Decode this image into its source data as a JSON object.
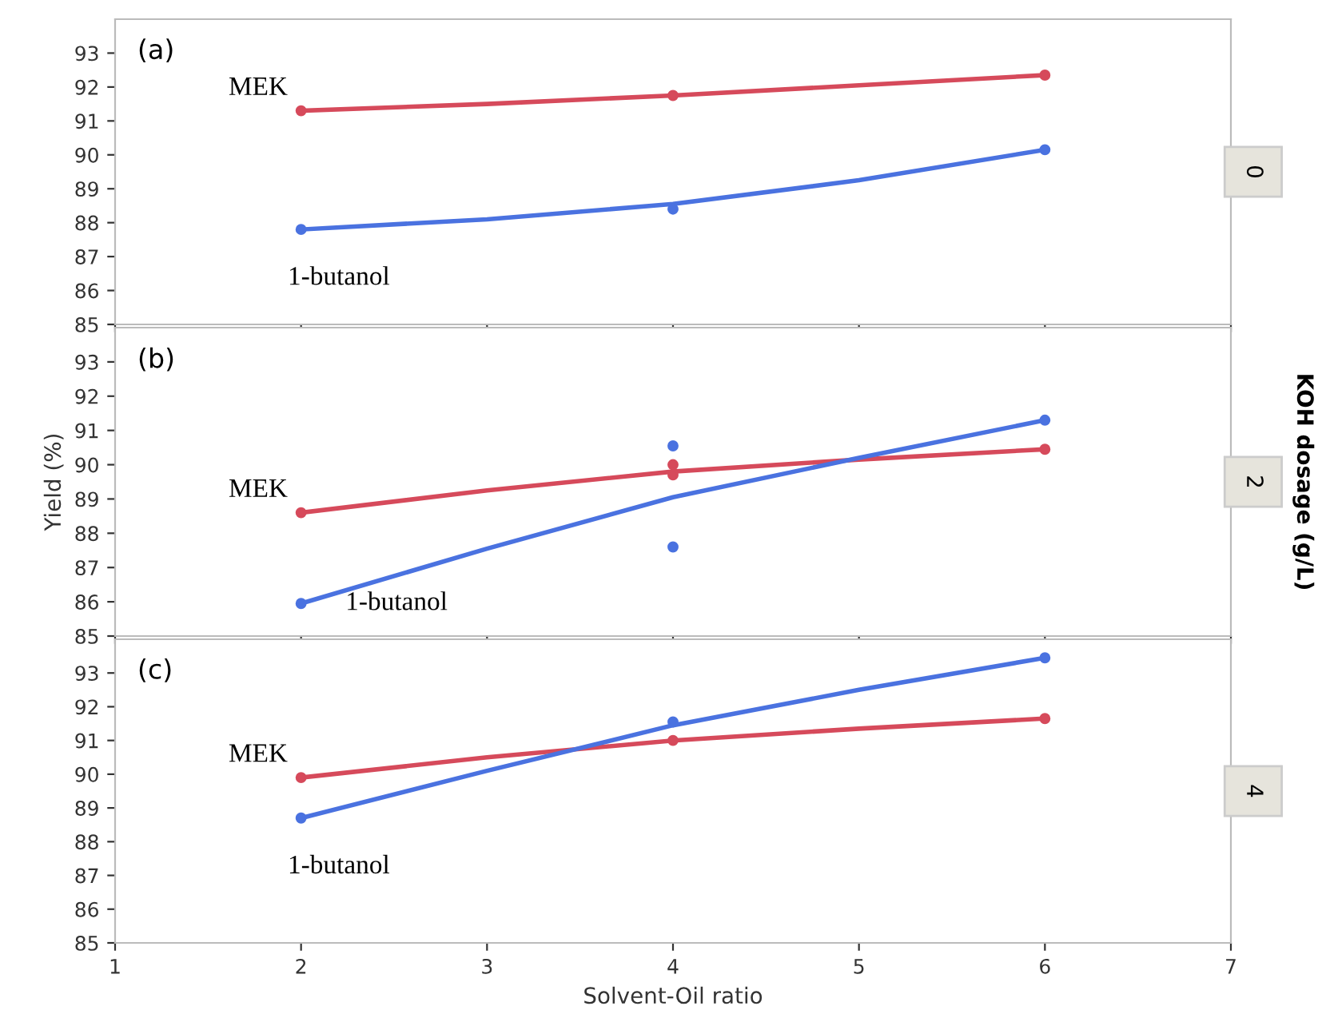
{
  "chart_data": [
    {
      "type": "scatter",
      "xlim": [
        1,
        7
      ],
      "xticks": [
        1,
        2,
        3,
        4,
        5,
        6,
        7
      ],
      "ylim": [
        85,
        94
      ],
      "yticks": [
        85,
        86,
        87,
        88,
        89,
        90,
        91,
        92,
        93
      ],
      "tick_labels": "y",
      "marker": "circle",
      "annotations": [
        "(a)",
        "0"
      ],
      "series": [
        {
          "name": "MEK",
          "color": "#d64a5b",
          "x": [
            2,
            4,
            6
          ],
          "values": [
            91.3,
            91.75,
            92.35
          ]
        },
        {
          "name": "1-butanol",
          "color": "#4a72e0",
          "x": [
            2,
            4,
            6
          ],
          "values": [
            87.8,
            88.4,
            90.15
          ]
        },
        {
          "type": "line",
          "marker": "none",
          "color": "#d64a5b",
          "x": [
            2,
            3,
            4,
            5,
            6
          ],
          "values": [
            91.3,
            91.5,
            91.75,
            92.05,
            92.35
          ]
        },
        {
          "type": "line",
          "marker": "none",
          "color": "#4a72e0",
          "x": [
            2,
            3,
            4,
            5,
            6
          ],
          "values": [
            87.8,
            88.1,
            88.55,
            89.25,
            90.15
          ]
        }
      ]
    },
    {
      "type": "scatter",
      "xlim": [
        1,
        7
      ],
      "xticks": [
        1,
        2,
        3,
        4,
        5,
        6,
        7
      ],
      "ylim": [
        85,
        94
      ],
      "yticks": [
        85,
        86,
        87,
        88,
        89,
        90,
        91,
        92,
        93
      ],
      "tick_labels": "y",
      "marker": "circle",
      "ylabel": "Yield (%)",
      "y2label": "KOH dosage (g/L)",
      "annotations": [
        "(b)",
        "2"
      ],
      "series": [
        {
          "name": "MEK",
          "color": "#d64a5b",
          "x": [
            2,
            4,
            4,
            6
          ],
          "values": [
            88.6,
            90.0,
            89.7,
            90.45
          ]
        },
        {
          "name": "1-butanol",
          "color": "#4a72e0",
          "x": [
            2,
            4,
            4,
            6
          ],
          "values": [
            85.95,
            90.55,
            87.6,
            91.3
          ]
        },
        {
          "type": "line",
          "marker": "none",
          "color": "#d64a5b",
          "x": [
            2,
            3,
            4,
            5,
            6
          ],
          "values": [
            88.6,
            89.25,
            89.8,
            90.15,
            90.45
          ]
        },
        {
          "type": "line",
          "marker": "none",
          "color": "#4a72e0",
          "x": [
            2,
            3,
            4,
            5,
            6
          ],
          "values": [
            85.95,
            87.55,
            89.05,
            90.2,
            91.3
          ]
        }
      ]
    },
    {
      "type": "scatter",
      "xlim": [
        1,
        7
      ],
      "xticks": [
        1,
        2,
        3,
        4,
        5,
        6,
        7
      ],
      "ylim": [
        85,
        94
      ],
      "yticks": [
        85,
        86,
        87,
        88,
        89,
        90,
        91,
        92,
        93
      ],
      "marker": "circle",
      "xlabel": "Solvent-Oil ratio",
      "annotations": [
        "(c)",
        "4"
      ],
      "series": [
        {
          "name": "MEK",
          "color": "#d64a5b",
          "x": [
            2,
            4,
            6
          ],
          "values": [
            89.9,
            91.0,
            91.65
          ]
        },
        {
          "name": "1-butanol",
          "color": "#4a72e0",
          "x": [
            2,
            4,
            6
          ],
          "values": [
            88.7,
            91.55,
            93.45
          ]
        },
        {
          "type": "line",
          "marker": "none",
          "color": "#d64a5b",
          "x": [
            2,
            3,
            4,
            5,
            6
          ],
          "values": [
            89.9,
            90.5,
            91.0,
            91.35,
            91.65
          ]
        },
        {
          "type": "line",
          "marker": "none",
          "color": "#4a72e0",
          "x": [
            2,
            3,
            4,
            5,
            6
          ],
          "values": [
            88.7,
            90.1,
            91.45,
            92.5,
            93.45
          ]
        }
      ]
    }
  ]
}
